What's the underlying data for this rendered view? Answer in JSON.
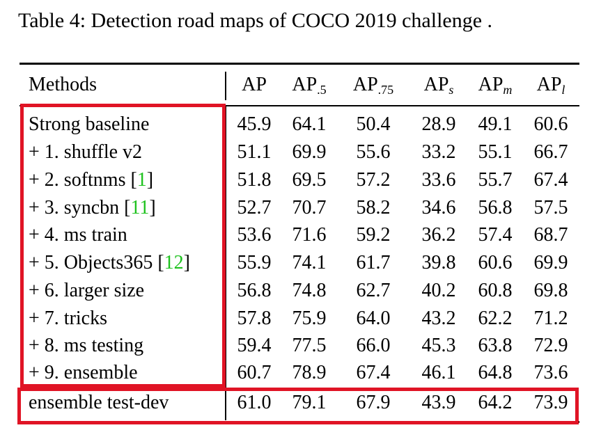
{
  "caption": "Table 4: Detection road maps of COCO 2019 challenge .",
  "header": {
    "methods": "Methods",
    "cols": [
      {
        "main": "AP",
        "sub": ""
      },
      {
        "main": "AP",
        "sub": ".5"
      },
      {
        "main": "AP",
        "sub": ".75"
      },
      {
        "main": "AP",
        "sub": "s"
      },
      {
        "main": "AP",
        "sub": "m"
      },
      {
        "main": "AP",
        "sub": "l"
      }
    ]
  },
  "rows": [
    {
      "method": "Strong baseline",
      "ref": "",
      "suffix": "",
      "values": [
        "45.9",
        "64.1",
        "50.4",
        "28.9",
        "49.1",
        "60.6"
      ]
    },
    {
      "method": "+ 1. shuffle v2",
      "ref": "",
      "suffix": "",
      "values": [
        "51.1",
        "69.9",
        "55.6",
        "33.2",
        "55.1",
        "66.7"
      ]
    },
    {
      "method": "+ 2. softnms [",
      "ref": "1",
      "suffix": "]",
      "values": [
        "51.8",
        "69.5",
        "57.2",
        "33.6",
        "55.7",
        "67.4"
      ]
    },
    {
      "method": "+ 3. syncbn [",
      "ref": "11",
      "suffix": "]",
      "values": [
        "52.7",
        "70.7",
        "58.2",
        "34.6",
        "56.8",
        "57.5"
      ]
    },
    {
      "method": "+ 4. ms train",
      "ref": "",
      "suffix": "",
      "values": [
        "53.6",
        "71.6",
        "59.2",
        "36.2",
        "57.4",
        "68.7"
      ]
    },
    {
      "method": "+ 5. Objects365 [",
      "ref": "12",
      "suffix": "]",
      "values": [
        "55.9",
        "74.1",
        "61.7",
        "39.8",
        "60.6",
        "69.9"
      ]
    },
    {
      "method": "+ 6. larger size",
      "ref": "",
      "suffix": "",
      "values": [
        "56.8",
        "74.8",
        "62.7",
        "40.2",
        "60.8",
        "69.8"
      ]
    },
    {
      "method": "+ 7. tricks",
      "ref": "",
      "suffix": "",
      "values": [
        "57.8",
        "75.9",
        "64.0",
        "43.2",
        "62.2",
        "71.2"
      ]
    },
    {
      "method": "+ 8. ms testing",
      "ref": "",
      "suffix": "",
      "values": [
        "59.4",
        "77.5",
        "66.0",
        "45.3",
        "63.8",
        "72.9"
      ]
    },
    {
      "method": "+ 9. ensemble",
      "ref": "",
      "suffix": "",
      "values": [
        "60.7",
        "78.9",
        "67.4",
        "46.1",
        "64.8",
        "73.6"
      ]
    },
    {
      "method": "ensemble test-dev",
      "ref": "",
      "suffix": "",
      "values": [
        "61.0",
        "79.1",
        "67.9",
        "43.9",
        "64.2",
        "73.9"
      ]
    }
  ],
  "colors": {
    "highlight_box": "#e01425",
    "citation": "#1ec21e"
  }
}
